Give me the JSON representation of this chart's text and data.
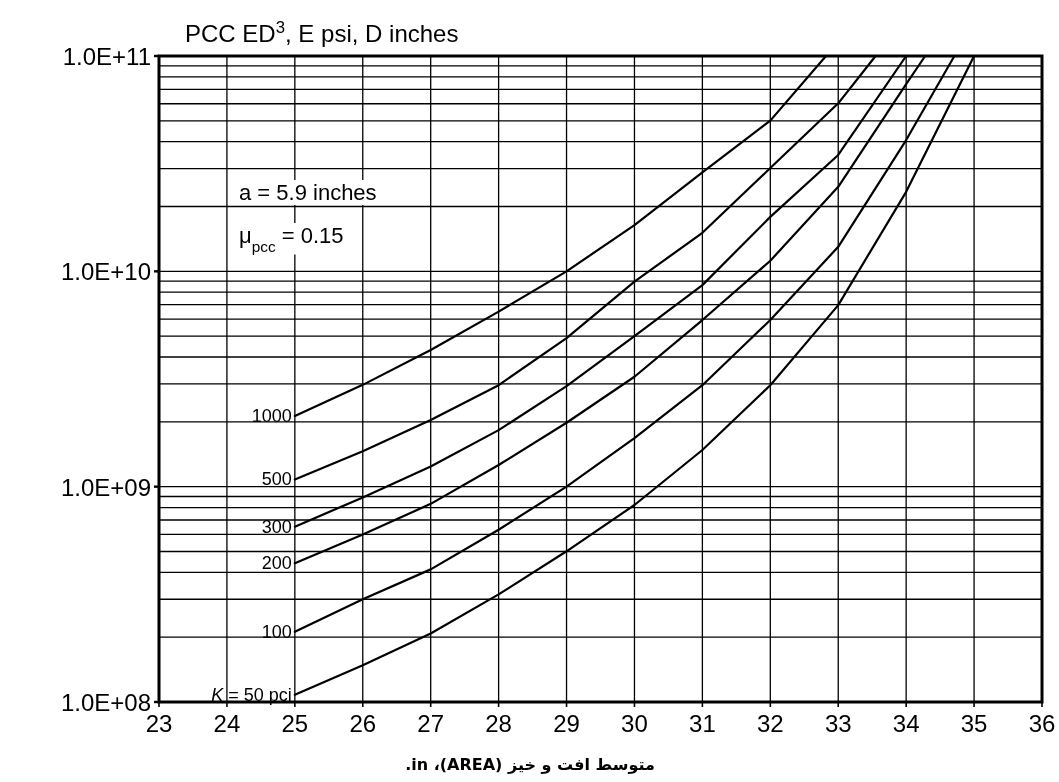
{
  "chart_data": {
    "type": "line",
    "title": "PCC ED$^{3}$, E psi, D inches",
    "xlabel": "متوسط افت و خیز (AREA)، in.",
    "annotations": [
      "a = 5.9 inches",
      "μ$_{pcc}$ = 0.15"
    ],
    "xlim": [
      23,
      36
    ],
    "xticks": [
      23,
      24,
      25,
      26,
      27,
      28,
      29,
      30,
      31,
      32,
      33,
      34,
      35,
      36
    ],
    "ylim": [
      100000000.0,
      100000000000.0
    ],
    "log": "y",
    "yticks": [
      {
        "value": 100000000.0,
        "label": "1.0E+08"
      },
      {
        "value": 1000000000.0,
        "label": "1.0E+09"
      },
      {
        "value": 10000000000.0,
        "label": "1.0E+10"
      },
      {
        "value": 100000000000.0,
        "label": "1.0E+11"
      }
    ],
    "grid": true,
    "legend": false,
    "marker": "none",
    "line_style": "solid",
    "series": [
      {
        "name": "*K* = 50 pci",
        "color": "#000000",
        "x": [
          25,
          26,
          27,
          28,
          29,
          30,
          31,
          32,
          33,
          34,
          35.0
        ],
        "values": [
          108000000.0,
          148000000.0,
          208000000.0,
          316000000.0,
          501000000.0,
          822000000.0,
          1480000000.0,
          2960000000.0,
          6970000000.0,
          23400000000.0,
          100000000000.0
        ]
      },
      {
        "name": "100",
        "color": "#000000",
        "x": [
          25,
          26,
          27,
          28,
          29,
          30,
          31,
          32,
          33,
          34,
          34.71
        ],
        "values": [
          212000000.0,
          300000000.0,
          413000000.0,
          631000000.0,
          1000000000.0,
          1680000000.0,
          2960000000.0,
          5940000000.0,
          13000000000.0,
          40700000000.0,
          100000000000.0
        ]
      },
      {
        "name": "200",
        "color": "#000000",
        "x": [
          25,
          26,
          27,
          28,
          29,
          30,
          31,
          32,
          33,
          34,
          34.28
        ],
        "values": [
          441000000.0,
          600000000.0,
          832000000.0,
          1260000000.0,
          1980000000.0,
          3240000000.0,
          5940000000.0,
          11200000000.0,
          24700000000.0,
          74100000000.0,
          100000000000.0
        ]
      },
      {
        "name": "300",
        "color": "#000000",
        "x": [
          25,
          26,
          27,
          28,
          29,
          30,
          31,
          32,
          33,
          34.0
        ],
        "values": [
          652000000.0,
          891000000.0,
          1240000000.0,
          1830000000.0,
          2930000000.0,
          5000000000.0,
          8630000000.0,
          17900000000.0,
          34700000000.0,
          100000000000.0
        ]
      },
      {
        "name": "500",
        "color": "#000000",
        "x": [
          25,
          26,
          27,
          28,
          29,
          30,
          31,
          32,
          33,
          33.55
        ],
        "values": [
          1080000000.0,
          1460000000.0,
          2040000000.0,
          2960000000.0,
          4900000000.0,
          8950000000.0,
          15100000000.0,
          30200000000.0,
          60300000000.0,
          100000000000.0
        ]
      },
      {
        "name": "1000",
        "color": "#000000",
        "x": [
          25,
          26,
          27,
          28,
          29,
          30,
          31,
          32,
          32.82
        ],
        "values": [
          2130000000.0,
          2970000000.0,
          4310000000.0,
          6500000000.0,
          10000000000.0,
          16400000000.0,
          28800000000.0,
          50100000000.0,
          100000000000.0
        ]
      }
    ]
  }
}
